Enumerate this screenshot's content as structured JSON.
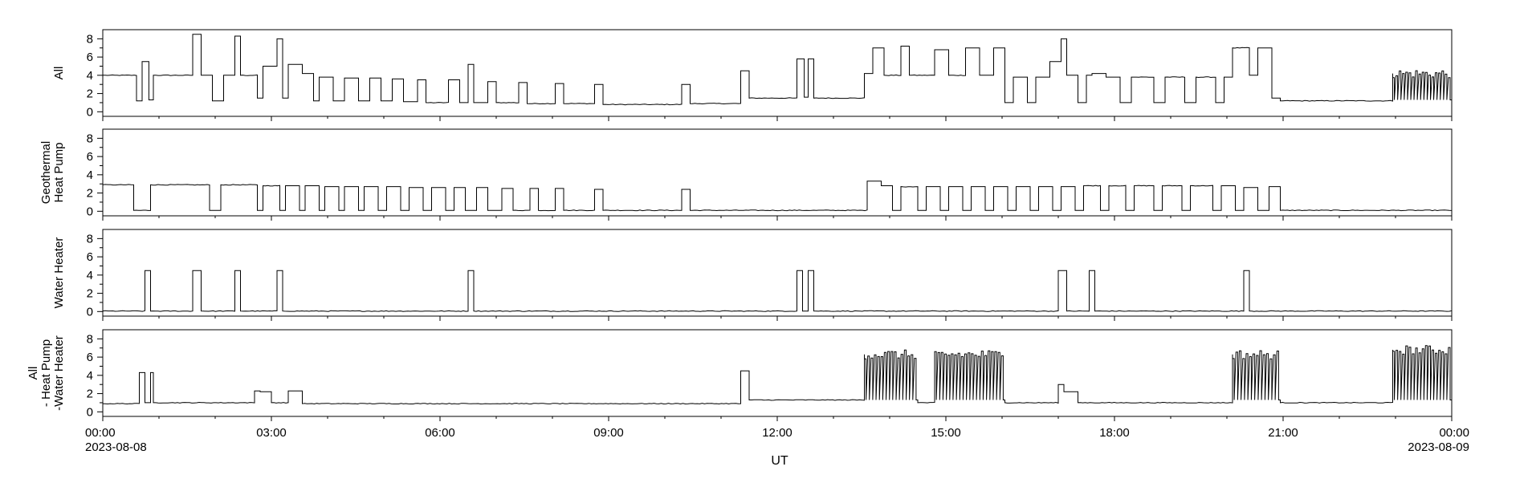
{
  "chart_data": {
    "type": "line",
    "xlabel": "UT",
    "x_range": [
      "2023-08-08T00:00",
      "2023-08-09T00:00"
    ],
    "x_ticks": [
      {
        "t": 0,
        "label": "00:00",
        "date": "2023-08-08"
      },
      {
        "t": 3,
        "label": "03:00"
      },
      {
        "t": 6,
        "label": "06:00"
      },
      {
        "t": 9,
        "label": "09:00"
      },
      {
        "t": 12,
        "label": "12:00"
      },
      {
        "t": 15,
        "label": "15:00"
      },
      {
        "t": 18,
        "label": "18:00"
      },
      {
        "t": 21,
        "label": "21:00"
      },
      {
        "t": 24,
        "label": "00:00",
        "date": "2023-08-09"
      }
    ],
    "ylim": [
      -0.5,
      9
    ],
    "y_ticks": [
      0,
      2,
      4,
      6,
      8
    ],
    "line_color": "#000000",
    "panels": [
      {
        "ylabel": [
          "All"
        ],
        "cycles": [
          [
            0,
            0.6,
            4.0
          ],
          [
            0.6,
            0.7,
            1.2
          ],
          [
            0.7,
            0.82,
            5.5
          ],
          [
            0.82,
            0.9,
            1.3
          ],
          [
            0.9,
            1.6,
            4.0
          ],
          [
            1.6,
            1.75,
            8.5
          ],
          [
            1.75,
            1.95,
            4.0
          ],
          [
            1.95,
            2.15,
            1.2
          ],
          [
            2.15,
            2.35,
            4.0
          ],
          [
            2.35,
            2.45,
            8.3
          ],
          [
            2.45,
            2.75,
            4.0
          ],
          [
            2.75,
            2.85,
            1.5
          ],
          [
            2.85,
            3.1,
            5.0
          ],
          [
            3.1,
            3.2,
            8.0
          ],
          [
            3.2,
            3.3,
            1.5
          ],
          [
            3.3,
            3.55,
            5.2
          ],
          [
            3.55,
            3.75,
            4.2
          ],
          [
            3.75,
            3.85,
            1.2
          ],
          [
            3.85,
            4.1,
            3.8
          ],
          [
            4.1,
            4.3,
            1.2
          ],
          [
            4.3,
            4.55,
            3.7
          ],
          [
            4.55,
            4.75,
            1.2
          ],
          [
            4.75,
            4.95,
            3.7
          ],
          [
            4.95,
            5.15,
            1.2
          ],
          [
            5.15,
            5.35,
            3.6
          ],
          [
            5.35,
            5.6,
            1.1
          ],
          [
            5.6,
            5.75,
            3.5
          ],
          [
            5.75,
            6.15,
            1.0
          ],
          [
            6.15,
            6.35,
            3.5
          ],
          [
            6.35,
            6.5,
            1.0
          ],
          [
            6.5,
            6.6,
            5.2
          ],
          [
            6.6,
            6.85,
            1.0
          ],
          [
            6.85,
            7.0,
            3.3
          ],
          [
            7.0,
            7.4,
            1.0
          ],
          [
            7.4,
            7.55,
            3.2
          ],
          [
            7.55,
            8.05,
            0.9
          ],
          [
            8.05,
            8.2,
            3.1
          ],
          [
            8.2,
            8.75,
            0.9
          ],
          [
            8.75,
            8.9,
            3.0
          ],
          [
            8.9,
            10.3,
            0.8
          ],
          [
            10.3,
            10.45,
            3.0
          ],
          [
            10.45,
            11.35,
            0.9
          ],
          [
            11.35,
            11.5,
            4.5
          ],
          [
            11.5,
            12.35,
            1.5
          ],
          [
            12.35,
            12.48,
            5.8
          ],
          [
            12.48,
            12.55,
            1.6
          ],
          [
            12.55,
            12.65,
            5.8
          ],
          [
            12.65,
            13.55,
            1.5
          ],
          [
            13.55,
            13.7,
            4.2
          ],
          [
            13.7,
            13.9,
            7.0
          ],
          [
            13.9,
            14.2,
            4.0
          ],
          [
            14.2,
            14.35,
            7.2
          ],
          [
            14.35,
            14.8,
            4.0
          ],
          [
            14.8,
            15.05,
            6.8
          ],
          [
            15.05,
            15.35,
            4.0
          ],
          [
            15.35,
            15.6,
            7.0
          ],
          [
            15.6,
            15.85,
            4.0
          ],
          [
            15.85,
            16.05,
            7.0
          ],
          [
            16.05,
            16.2,
            1.0
          ],
          [
            16.2,
            16.45,
            3.8
          ],
          [
            16.45,
            16.6,
            1.0
          ],
          [
            16.6,
            16.85,
            3.8
          ],
          [
            16.85,
            17.05,
            5.5
          ],
          [
            17.05,
            17.15,
            8.0
          ],
          [
            17.15,
            17.35,
            4.0
          ],
          [
            17.35,
            17.5,
            1.0
          ],
          [
            17.5,
            17.6,
            4.0
          ],
          [
            17.6,
            17.85,
            4.2
          ],
          [
            17.85,
            18.1,
            3.8
          ],
          [
            18.1,
            18.3,
            1.0
          ],
          [
            18.3,
            18.7,
            3.8
          ],
          [
            18.7,
            18.9,
            1.0
          ],
          [
            18.9,
            19.25,
            3.8
          ],
          [
            19.25,
            19.45,
            1.0
          ],
          [
            19.45,
            19.8,
            3.8
          ],
          [
            19.8,
            19.95,
            1.0
          ],
          [
            19.95,
            20.1,
            3.8
          ],
          [
            20.1,
            20.4,
            7.0
          ],
          [
            20.4,
            20.55,
            4.0
          ],
          [
            20.55,
            20.8,
            7.0
          ],
          [
            20.8,
            20.95,
            1.5
          ],
          [
            20.95,
            22.95,
            1.2
          ],
          [
            22.95,
            24.0,
            4.2
          ]
        ]
      },
      {
        "ylabel": [
          "Geothermal",
          "Heat Pump"
        ],
        "cycles": [
          [
            0,
            0.55,
            2.9
          ],
          [
            0.55,
            0.85,
            0.1
          ],
          [
            0.85,
            1.9,
            2.9
          ],
          [
            1.9,
            2.1,
            0.1
          ],
          [
            2.1,
            2.75,
            2.9
          ],
          [
            2.75,
            2.85,
            0.1
          ],
          [
            2.85,
            3.15,
            2.8
          ],
          [
            3.15,
            3.25,
            0.1
          ],
          [
            3.25,
            3.5,
            2.8
          ],
          [
            3.5,
            3.6,
            0.1
          ],
          [
            3.6,
            3.85,
            2.8
          ],
          [
            3.85,
            3.95,
            0.1
          ],
          [
            3.95,
            4.2,
            2.7
          ],
          [
            4.2,
            4.3,
            0.1
          ],
          [
            4.3,
            4.55,
            2.7
          ],
          [
            4.55,
            4.65,
            0.1
          ],
          [
            4.65,
            4.9,
            2.7
          ],
          [
            4.9,
            5.05,
            0.1
          ],
          [
            5.05,
            5.3,
            2.7
          ],
          [
            5.3,
            5.45,
            0.1
          ],
          [
            5.45,
            5.7,
            2.6
          ],
          [
            5.7,
            5.85,
            0.1
          ],
          [
            5.85,
            6.1,
            2.6
          ],
          [
            6.1,
            6.25,
            0.1
          ],
          [
            6.25,
            6.45,
            2.6
          ],
          [
            6.45,
            6.65,
            0.1
          ],
          [
            6.65,
            6.85,
            2.6
          ],
          [
            6.85,
            7.1,
            0.1
          ],
          [
            7.1,
            7.3,
            2.5
          ],
          [
            7.3,
            7.6,
            0.1
          ],
          [
            7.6,
            7.75,
            2.5
          ],
          [
            7.75,
            8.05,
            0.1
          ],
          [
            8.05,
            8.2,
            2.5
          ],
          [
            8.2,
            8.75,
            0.1
          ],
          [
            8.75,
            8.9,
            2.4
          ],
          [
            8.9,
            10.3,
            0.1
          ],
          [
            10.3,
            10.45,
            2.4
          ],
          [
            10.45,
            13.6,
            0.1
          ],
          [
            13.6,
            13.85,
            3.3
          ],
          [
            13.85,
            14.05,
            2.8
          ],
          [
            14.05,
            14.2,
            0.1
          ],
          [
            14.2,
            14.5,
            2.7
          ],
          [
            14.5,
            14.65,
            0.1
          ],
          [
            14.65,
            14.9,
            2.7
          ],
          [
            14.9,
            15.05,
            0.1
          ],
          [
            15.05,
            15.3,
            2.7
          ],
          [
            15.3,
            15.45,
            0.1
          ],
          [
            15.45,
            15.7,
            2.7
          ],
          [
            15.7,
            15.85,
            0.1
          ],
          [
            15.85,
            16.1,
            2.7
          ],
          [
            16.1,
            16.25,
            0.1
          ],
          [
            16.25,
            16.5,
            2.7
          ],
          [
            16.5,
            16.65,
            0.1
          ],
          [
            16.65,
            16.9,
            2.7
          ],
          [
            16.9,
            17.05,
            0.1
          ],
          [
            17.05,
            17.3,
            2.7
          ],
          [
            17.3,
            17.45,
            0.1
          ],
          [
            17.45,
            17.75,
            2.8
          ],
          [
            17.75,
            17.9,
            0.1
          ],
          [
            17.9,
            18.2,
            2.8
          ],
          [
            18.2,
            18.35,
            0.1
          ],
          [
            18.35,
            18.7,
            2.8
          ],
          [
            18.7,
            18.85,
            0.1
          ],
          [
            18.85,
            19.2,
            2.8
          ],
          [
            19.2,
            19.35,
            0.1
          ],
          [
            19.35,
            19.75,
            2.8
          ],
          [
            19.75,
            19.9,
            0.1
          ],
          [
            19.9,
            20.15,
            2.8
          ],
          [
            20.15,
            20.3,
            0.1
          ],
          [
            20.3,
            20.55,
            2.6
          ],
          [
            20.55,
            20.75,
            0.1
          ],
          [
            20.75,
            20.95,
            2.7
          ],
          [
            20.95,
            24.0,
            0.1
          ]
        ]
      },
      {
        "ylabel": [
          "Water Heater"
        ],
        "cycles": [
          [
            0,
            0.75,
            0.05
          ],
          [
            0.75,
            0.85,
            4.5
          ],
          [
            0.85,
            1.6,
            0.05
          ],
          [
            1.6,
            1.75,
            4.5
          ],
          [
            1.75,
            2.35,
            0.05
          ],
          [
            2.35,
            2.45,
            4.5
          ],
          [
            2.45,
            3.1,
            0.05
          ],
          [
            3.1,
            3.2,
            4.5
          ],
          [
            3.2,
            6.5,
            0.05
          ],
          [
            6.5,
            6.6,
            4.5
          ],
          [
            6.6,
            12.35,
            0.05
          ],
          [
            12.35,
            12.45,
            4.5
          ],
          [
            12.45,
            12.55,
            0.05
          ],
          [
            12.55,
            12.65,
            4.5
          ],
          [
            12.65,
            17.0,
            0.05
          ],
          [
            17.0,
            17.15,
            4.5
          ],
          [
            17.15,
            17.55,
            0.05
          ],
          [
            17.55,
            17.65,
            4.5
          ],
          [
            17.65,
            20.3,
            0.05
          ],
          [
            20.3,
            20.4,
            4.5
          ],
          [
            20.4,
            24.0,
            0.05
          ]
        ]
      },
      {
        "ylabel": [
          "All",
          "- Heat Pump",
          "-Water Heater"
        ],
        "cycles": [
          [
            0,
            0.65,
            0.9
          ],
          [
            0.65,
            0.75,
            4.3
          ],
          [
            0.75,
            0.85,
            1.0
          ],
          [
            0.85,
            0.9,
            4.3
          ],
          [
            0.9,
            2.7,
            1.0
          ],
          [
            2.7,
            2.8,
            2.3
          ],
          [
            2.8,
            3.0,
            2.2
          ],
          [
            3.0,
            3.3,
            1.0
          ],
          [
            3.3,
            3.55,
            2.3
          ],
          [
            3.55,
            11.35,
            0.9
          ],
          [
            11.35,
            11.5,
            4.5
          ],
          [
            11.5,
            13.55,
            1.3
          ],
          [
            13.55,
            14.5,
            6.3
          ],
          [
            14.5,
            14.8,
            1.0
          ],
          [
            14.8,
            16.05,
            6.3
          ],
          [
            16.05,
            17.0,
            1.0
          ],
          [
            17.0,
            17.1,
            3.0
          ],
          [
            17.1,
            17.35,
            2.2
          ],
          [
            17.35,
            20.1,
            1.0
          ],
          [
            20.1,
            20.95,
            6.3
          ],
          [
            20.95,
            22.95,
            1.0
          ],
          [
            22.95,
            24.0,
            6.8
          ]
        ]
      }
    ]
  }
}
